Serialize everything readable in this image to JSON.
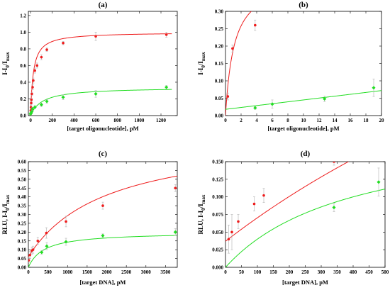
{
  "colors": {
    "red": "#ee1c1c",
    "green": "#22dd22",
    "axis": "#000000",
    "error": "#bbbbbb"
  },
  "chart_data": [
    {
      "type": "scatter",
      "title": "(a)",
      "xlabel": "[target oligonucleotide], pM",
      "ylabel": {
        "main": "I-I",
        "sub1": "0",
        "mid": "/I",
        "sub2": "max"
      },
      "xlim": [
        -20,
        1350
      ],
      "ylim": [
        0,
        1.25
      ],
      "xticks": [
        0,
        200,
        400,
        600,
        800,
        1000,
        1200
      ],
      "yticks": [
        0.0,
        0.2,
        0.4,
        0.6,
        0.8,
        1.0,
        1.2
      ],
      "ytick_labels": [
        "0.0",
        "0.2",
        "0.4",
        "0.6",
        "0.8",
        "1.0",
        "1.2"
      ],
      "series": [
        {
          "color": "red",
          "points": [
            [
              0,
              0.02
            ],
            [
              2,
              0.06
            ],
            [
              4,
              0.1
            ],
            [
              6,
              0.15
            ],
            [
              8,
              0.19
            ],
            [
              12,
              0.26
            ],
            [
              19,
              0.34
            ],
            [
              25,
              0.42
            ],
            [
              40,
              0.54
            ],
            [
              60,
              0.6
            ],
            [
              100,
              0.7
            ],
            [
              150,
              0.79
            ],
            [
              300,
              0.87
            ],
            [
              600,
              0.95
            ],
            [
              1250,
              0.97
            ]
          ],
          "errors": [
            0.01,
            0.01,
            0.02,
            0.02,
            0.02,
            0.02,
            0.03,
            0.03,
            0.03,
            0.03,
            0.03,
            0.02,
            0.02,
            0.05,
            0.03
          ],
          "fit": {
            "model": "hyperbola",
            "a": 1.0,
            "k": 25,
            "xmax": 1300
          }
        },
        {
          "color": "green",
          "points": [
            [
              0,
              0.02
            ],
            [
              4,
              0.025
            ],
            [
              6,
              0.035
            ],
            [
              12,
              0.05
            ],
            [
              19,
              0.08
            ],
            [
              40,
              0.1
            ],
            [
              100,
              0.13
            ],
            [
              150,
              0.17
            ],
            [
              300,
              0.22
            ],
            [
              600,
              0.26
            ],
            [
              1250,
              0.34
            ]
          ],
          "errors": [
            0.01,
            0.01,
            0.01,
            0.01,
            0.02,
            0.02,
            0.02,
            0.02,
            0.03,
            0.04,
            0.02
          ],
          "fit": {
            "model": "hyperbola",
            "a": 0.34,
            "k": 110,
            "xmax": 1300
          }
        }
      ]
    },
    {
      "type": "scatter",
      "title": "(b)",
      "xlabel": "[target oligonucleotide], pM",
      "ylabel": {
        "main": "I-I",
        "sub1": "0",
        "mid": "/I",
        "sub2": "max"
      },
      "xlim": [
        0,
        20
      ],
      "ylim": [
        0,
        0.3
      ],
      "xticks": [
        0,
        2,
        4,
        6,
        8,
        10,
        12,
        14,
        16,
        18,
        20
      ],
      "yticks": [
        0.0,
        0.05,
        0.1,
        0.15,
        0.2,
        0.25,
        0.3
      ],
      "ytick_labels": [
        "0.00",
        "0.05",
        "0.10",
        "0.15",
        "0.20",
        "0.25",
        "0.30"
      ],
      "series": [
        {
          "color": "red",
          "points": [
            [
              0.3,
              0.055
            ],
            [
              0.9,
              0.193
            ],
            [
              3.8,
              0.26
            ]
          ],
          "errors": [
            0.01,
            0.01,
            0.015
          ],
          "fit": {
            "model": "hyperbola",
            "a": 0.4,
            "k": 1.1,
            "xmax": 20
          }
        },
        {
          "color": "green",
          "points": [
            [
              3.8,
              0.022
            ],
            [
              6,
              0.033
            ],
            [
              12.7,
              0.048
            ],
            [
              19,
              0.08
            ]
          ],
          "errors": [
            0.004,
            0.012,
            0.008,
            0.025
          ],
          "fit": {
            "model": "linear",
            "a": 0.0027,
            "b": 0.018,
            "xmax": 20
          }
        }
      ]
    },
    {
      "type": "scatter",
      "title": "(c)",
      "xlabel": "[target DNA], pM",
      "ylabel": {
        "main": "RLU, I-I",
        "sub1": "0",
        "mid": "/I",
        "sub2": "max"
      },
      "xlim": [
        0,
        3800
      ],
      "ylim": [
        0,
        0.6
      ],
      "xticks": [
        0,
        500,
        1000,
        1500,
        2000,
        2500,
        3000,
        3500
      ],
      "yticks": [
        0.0,
        0.05,
        0.1,
        0.15,
        0.2,
        0.25,
        0.3,
        0.35,
        0.4,
        0.45,
        0.5,
        0.55,
        0.6
      ],
      "ytick_labels": [
        "0.00",
        "0.05",
        "0.10",
        "0.15",
        "0.20",
        "0.25",
        "0.30",
        "0.35",
        "0.40",
        "0.45",
        "0.50",
        "0.55",
        "0.60"
      ],
      "series": [
        {
          "color": "red",
          "points": [
            [
              10,
              0.04
            ],
            [
              40,
              0.07
            ],
            [
              90,
              0.095
            ],
            [
              120,
              0.1
            ],
            [
              240,
              0.15
            ],
            [
              460,
              0.195
            ],
            [
              960,
              0.26
            ],
            [
              1900,
              0.35
            ],
            [
              3750,
              0.45
            ]
          ],
          "errors": [
            0.015,
            0.02,
            0.02,
            0.02,
            0.02,
            0.03,
            0.03,
            0.02,
            0.02
          ],
          "fit": {
            "model": "hyperbola",
            "a": 0.7,
            "k": 2000,
            "b": 0.06,
            "xmax": 3800
          }
        },
        {
          "color": "green",
          "points": [
            [
              340,
              0.085
            ],
            [
              470,
              0.12
            ],
            [
              960,
              0.145
            ],
            [
              1900,
              0.18
            ],
            [
              3750,
              0.2
            ]
          ],
          "errors": [
            0.01,
            0.02,
            0.02,
            0.01,
            0.02
          ],
          "fit": {
            "model": "hyperbola",
            "a": 0.2,
            "k": 400,
            "xmax": 3800
          }
        }
      ]
    },
    {
      "type": "scatter",
      "title": "(d)",
      "xlabel": "[target DNA], pM",
      "ylabel": {
        "main": "RLU, I-I",
        "sub1": "0",
        "mid": "/I",
        "sub2": "max"
      },
      "xlim": [
        0,
        500
      ],
      "ylim": [
        0,
        0.15
      ],
      "xticks": [
        0,
        50,
        100,
        150,
        200,
        250,
        300,
        350,
        400,
        450,
        500
      ],
      "yticks": [
        0.0,
        0.025,
        0.05,
        0.075,
        0.1,
        0.125,
        0.15
      ],
      "ytick_labels": [
        "0.000",
        "0.025",
        "0.050",
        "0.075",
        "0.100",
        "0.125",
        "0.150"
      ],
      "series": [
        {
          "color": "red",
          "points": [
            [
              10,
              0.04
            ],
            [
              20,
              0.05
            ],
            [
              40,
              0.065
            ],
            [
              90,
              0.09
            ],
            [
              120,
              0.102
            ],
            [
              340,
              0.15
            ]
          ],
          "errors": [
            0.02,
            0.025,
            0.01,
            0.01,
            0.01,
            0.005
          ],
          "fit": {
            "model": "hyperbola",
            "a": 0.7,
            "k": 2000,
            "b": 0.037,
            "xmax": 500
          }
        },
        {
          "color": "green",
          "points": [
            [
              340,
              0.085
            ],
            [
              480,
              0.121
            ]
          ],
          "errors": [
            0.006,
            0.02
          ],
          "fit": {
            "model": "hyperbola",
            "a": 0.2,
            "k": 400,
            "xmax": 500
          }
        }
      ]
    }
  ]
}
